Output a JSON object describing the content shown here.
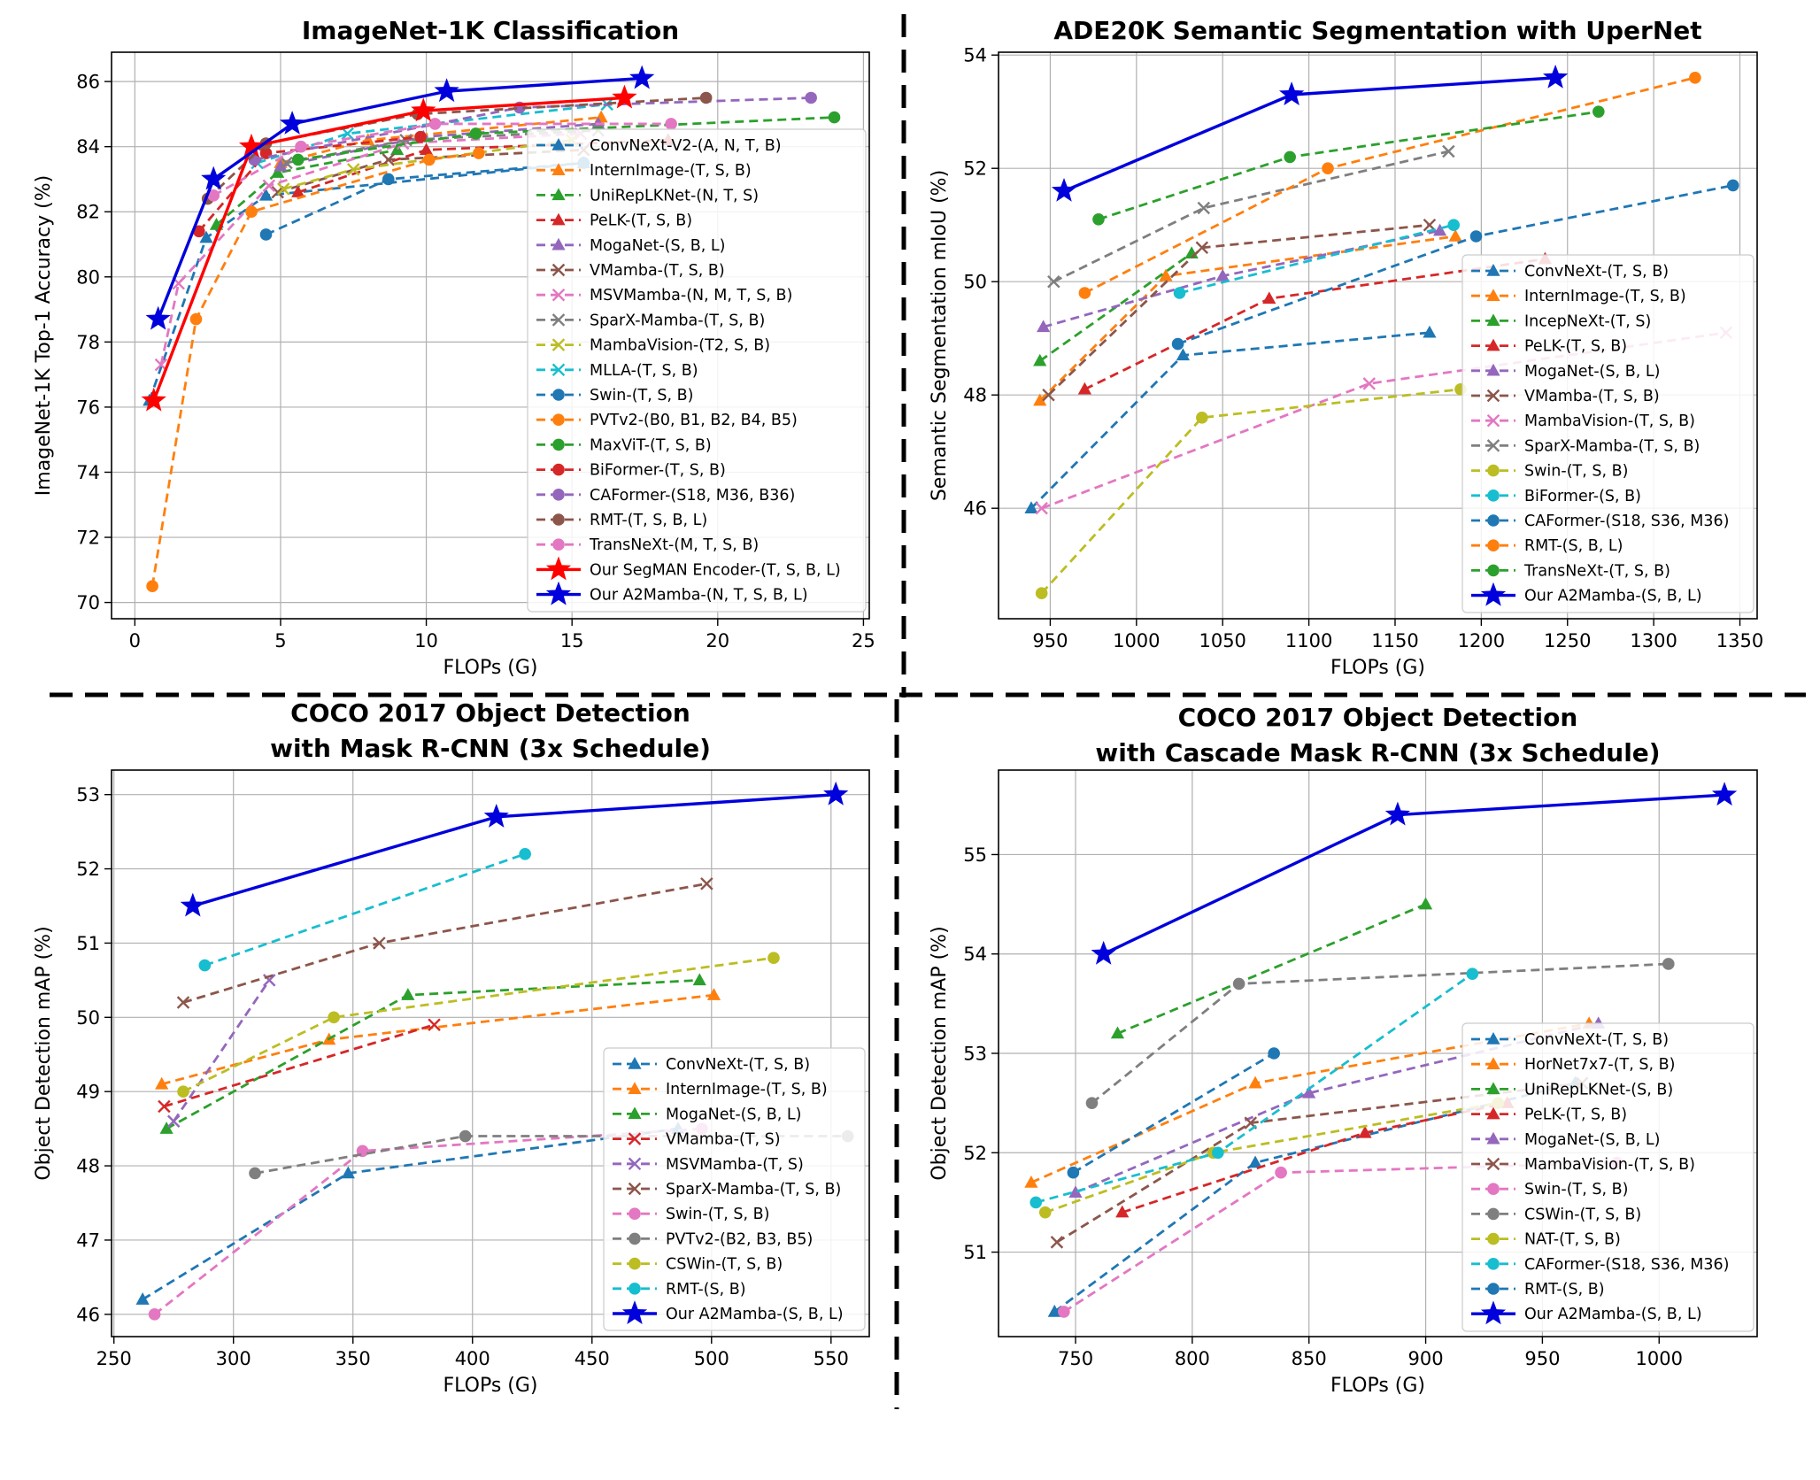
{
  "chart_data": [
    {
      "id": "imagenet",
      "type": "line",
      "title": [
        "ImageNet-1K Classification"
      ],
      "xlabel": "FLOPs (G)",
      "ylabel": "ImageNet-1K Top-1 Accuracy (%)",
      "xlim": [
        -0.8,
        25.2
      ],
      "ylim": [
        69.5,
        86.9
      ],
      "xticks": [
        0,
        5,
        10,
        15,
        20,
        25
      ],
      "yticks": [
        70,
        72,
        74,
        76,
        78,
        80,
        82,
        84,
        86
      ],
      "grid": true,
      "legend": "lower right",
      "series": [
        {
          "name": "ConvNeXt-V2-(A, N, T, B)",
          "color": "#1f77b4",
          "marker": "^",
          "dash": "dashed",
          "x": [
            0.5,
            2.45,
            4.5,
            15.4
          ],
          "y": [
            76.2,
            81.2,
            82.5,
            83.5
          ]
        },
        {
          "name": "InternImage-(T, S, B)",
          "color": "#ff7f0e",
          "marker": "^",
          "dash": "dashed",
          "x": [
            5,
            8,
            16
          ],
          "y": [
            83.5,
            84.2,
            84.9
          ]
        },
        {
          "name": "UniRepLKNet-(N, T, S)",
          "color": "#2ca02c",
          "marker": "^",
          "dash": "dashed",
          "x": [
            2.8,
            4.9,
            9
          ],
          "y": [
            81.6,
            83.2,
            83.9
          ]
        },
        {
          "name": "PeLK-(T, S, B)",
          "color": "#d62728",
          "marker": "^",
          "dash": "dashed",
          "x": [
            5.6,
            10,
            18.3
          ],
          "y": [
            82.6,
            83.9,
            84.2
          ]
        },
        {
          "name": "MogaNet-(S, B, L)",
          "color": "#9467bd",
          "marker": "^",
          "dash": "dashed",
          "x": [
            5,
            9.9,
            15.9
          ],
          "y": [
            83.4,
            84.3,
            84.7
          ]
        },
        {
          "name": "VMamba-(T, S, B)",
          "color": "#8c564b",
          "marker": "x",
          "dash": "dashed",
          "x": [
            4.9,
            8.7,
            15.4
          ],
          "y": [
            82.6,
            83.6,
            83.9
          ]
        },
        {
          "name": "MSVMamba-(N, M, T, S, B)",
          "color": "#e377c2",
          "marker": "x",
          "dash": "dashed",
          "x": [
            0.9,
            1.5,
            4.6,
            9.2,
            15.3
          ],
          "y": [
            77.3,
            79.8,
            82.8,
            84.1,
            84.4
          ]
        },
        {
          "name": "SparX-Mamba-(T, S, B)",
          "color": "#7f7f7f",
          "marker": "x",
          "dash": "dashed",
          "x": [
            5.2,
            9.3,
            15.9
          ],
          "y": [
            83.5,
            84.2,
            84.5
          ]
        },
        {
          "name": "MambaVision-(T2, S, B)",
          "color": "#bcbd22",
          "marker": "x",
          "dash": "dashed",
          "x": [
            5.1,
            7.5,
            15
          ],
          "y": [
            82.7,
            83.3,
            84.2
          ]
        },
        {
          "name": "MLLA-(T, S, B)",
          "color": "#17becf",
          "marker": "x",
          "dash": "dashed",
          "x": [
            4.2,
            7.3,
            16.2
          ],
          "y": [
            83.5,
            84.4,
            85.3
          ]
        },
        {
          "name": "Swin-(T, S, B)",
          "color": "#1f77b4",
          "marker": "o",
          "dash": "dashed",
          "x": [
            4.5,
            8.7,
            15.4
          ],
          "y": [
            81.3,
            83,
            83.5
          ]
        },
        {
          "name": "PVTv2-(B0, B1, B2, B4, B5)",
          "color": "#ff7f0e",
          "marker": "o",
          "dash": "dashed",
          "x": [
            0.6,
            2.1,
            4,
            10.1,
            11.8
          ],
          "y": [
            70.5,
            78.7,
            82,
            83.6,
            83.8
          ]
        },
        {
          "name": "MaxViT-(T, S, B)",
          "color": "#2ca02c",
          "marker": "o",
          "dash": "dashed",
          "x": [
            5.6,
            11.7,
            24
          ],
          "y": [
            83.6,
            84.4,
            84.9
          ]
        },
        {
          "name": "BiFormer-(T, S, B)",
          "color": "#d62728",
          "marker": "o",
          "dash": "dashed",
          "x": [
            2.2,
            4.5,
            9.8
          ],
          "y": [
            81.4,
            83.8,
            84.3
          ]
        },
        {
          "name": "CAFormer-(S18, M36, B36)",
          "color": "#9467bd",
          "marker": "o",
          "dash": "dashed",
          "x": [
            4.1,
            13.2,
            23.2
          ],
          "y": [
            83.6,
            85.2,
            85.5
          ]
        },
        {
          "name": "RMT-(T, S, B, L)",
          "color": "#8c564b",
          "marker": "o",
          "dash": "dashed",
          "x": [
            2.5,
            4.5,
            9.7,
            19.6
          ],
          "y": [
            82.4,
            84.1,
            85,
            85.5
          ]
        },
        {
          "name": "TransNeXt-(M, T, S, B)",
          "color": "#e377c2",
          "marker": "o",
          "dash": "dashed",
          "x": [
            2.7,
            5.7,
            10.3,
            18.4
          ],
          "y": [
            82.5,
            84,
            84.7,
            84.7
          ]
        },
        {
          "name": "Our SegMAN Encoder-(T, S, B, L)",
          "color": "#ff0000",
          "marker": "*",
          "dash": "solid",
          "x": [
            0.65,
            4,
            9.9,
            16.8
          ],
          "y": [
            76.2,
            84,
            85.1,
            85.5
          ]
        },
        {
          "name": "Our A2Mamba-(N, T, S, B, L)",
          "color": "#0000dd",
          "marker": "*",
          "dash": "solid",
          "x": [
            0.8,
            2.7,
            5.4,
            10.7,
            17.4
          ],
          "y": [
            78.7,
            83,
            84.7,
            85.7,
            86.1
          ]
        }
      ]
    },
    {
      "id": "ade20k",
      "type": "line",
      "title": [
        "ADE20K Semantic Segmentation with UperNet"
      ],
      "xlabel": "FLOPs (G)",
      "ylabel": "Semantic Segmentation mIoU (%)",
      "xlim": [
        920,
        1360
      ],
      "ylim": [
        44.05,
        54.05
      ],
      "xticks": [
        950,
        1000,
        1050,
        1100,
        1150,
        1200,
        1250,
        1300,
        1350
      ],
      "yticks": [
        46,
        48,
        50,
        52,
        54
      ],
      "grid": true,
      "legend": "lower right",
      "series": [
        {
          "name": "ConvNeXt-(T, S, B)",
          "color": "#1f77b4",
          "marker": "^",
          "dash": "dashed",
          "x": [
            939,
            1027,
            1170
          ],
          "y": [
            46,
            48.7,
            49.1
          ]
        },
        {
          "name": "InternImage-(T, S, B)",
          "color": "#ff7f0e",
          "marker": "^",
          "dash": "dashed",
          "x": [
            944,
            1017,
            1185
          ],
          "y": [
            47.9,
            50.1,
            50.8
          ]
        },
        {
          "name": "IncepNeXt-(T, S)",
          "color": "#2ca02c",
          "marker": "^",
          "dash": "dashed",
          "x": [
            944,
            1032
          ],
          "y": [
            48.6,
            50.5
          ]
        },
        {
          "name": "PeLK-(T, S, B)",
          "color": "#d62728",
          "marker": "^",
          "dash": "dashed",
          "x": [
            970,
            1077,
            1237
          ],
          "y": [
            48.1,
            49.7,
            50.4
          ]
        },
        {
          "name": "MogaNet-(S, B, L)",
          "color": "#9467bd",
          "marker": "^",
          "dash": "dashed",
          "x": [
            946,
            1050,
            1176
          ],
          "y": [
            49.2,
            50.1,
            50.9
          ]
        },
        {
          "name": "VMamba-(T, S, B)",
          "color": "#8c564b",
          "marker": "x",
          "dash": "dashed",
          "x": [
            949,
            1038,
            1170
          ],
          "y": [
            48,
            50.6,
            51
          ]
        },
        {
          "name": "MambaVision-(T, S, B)",
          "color": "#e377c2",
          "marker": "x",
          "dash": "dashed",
          "x": [
            945,
            1135,
            1342
          ],
          "y": [
            46,
            48.2,
            49.1
          ]
        },
        {
          "name": "SparX-Mamba-(T, S, B)",
          "color": "#7f7f7f",
          "marker": "x",
          "dash": "dashed",
          "x": [
            952,
            1039,
            1181
          ],
          "y": [
            50,
            51.3,
            52.3
          ]
        },
        {
          "name": "Swin-(T, S, B)",
          "color": "#bcbd22",
          "marker": "o",
          "dash": "dashed",
          "x": [
            945,
            1038,
            1188
          ],
          "y": [
            44.5,
            47.6,
            48.1
          ]
        },
        {
          "name": "BiFormer-(S, B)",
          "color": "#17becf",
          "marker": "o",
          "dash": "dashed",
          "x": [
            1025,
            1184
          ],
          "y": [
            49.8,
            51
          ]
        },
        {
          "name": "CAFormer-(S18, S36, M36)",
          "color": "#1f77b4",
          "marker": "o",
          "dash": "dashed",
          "x": [
            1024,
            1197,
            1346
          ],
          "y": [
            48.9,
            50.8,
            51.7
          ]
        },
        {
          "name": "RMT-(S, B, L)",
          "color": "#ff7f0e",
          "marker": "o",
          "dash": "dashed",
          "x": [
            970,
            1111,
            1324
          ],
          "y": [
            49.8,
            52,
            53.6
          ]
        },
        {
          "name": "TransNeXt-(T, S, B)",
          "color": "#2ca02c",
          "marker": "o",
          "dash": "dashed",
          "x": [
            978,
            1089,
            1268
          ],
          "y": [
            51.1,
            52.2,
            53
          ]
        },
        {
          "name": "Our A2Mamba-(S, B, L)",
          "color": "#0000dd",
          "marker": "*",
          "dash": "solid",
          "x": [
            958,
            1090,
            1243
          ],
          "y": [
            51.6,
            53.3,
            53.6
          ]
        }
      ]
    },
    {
      "id": "coco_mask",
      "type": "line",
      "title": [
        "COCO 2017 Object Detection",
        "with Mask R-CNN  (3x Schedule)"
      ],
      "xlabel": "FLOPs (G)",
      "ylabel": "Object Detection mAP (%)",
      "xlim": [
        249,
        566
      ],
      "ylim": [
        45.7,
        53.33
      ],
      "xticks": [
        250,
        300,
        350,
        400,
        450,
        500,
        550
      ],
      "yticks": [
        46,
        47,
        48,
        49,
        50,
        51,
        52,
        53
      ],
      "grid": true,
      "legend": "lower right",
      "series": [
        {
          "name": "ConvNeXt-(T, S, B)",
          "color": "#1f77b4",
          "marker": "^",
          "dash": "dashed",
          "x": [
            262,
            348,
            486
          ],
          "y": [
            46.2,
            47.9,
            48.5
          ]
        },
        {
          "name": "InternImage-(T, S, B)",
          "color": "#ff7f0e",
          "marker": "^",
          "dash": "dashed",
          "x": [
            270,
            340,
            501
          ],
          "y": [
            49.1,
            49.7,
            50.3
          ]
        },
        {
          "name": "MogaNet-(S, B, L)",
          "color": "#2ca02c",
          "marker": "^",
          "dash": "dashed",
          "x": [
            272,
            373,
            495
          ],
          "y": [
            48.5,
            50.3,
            50.5
          ]
        },
        {
          "name": "VMamba-(T, S)",
          "color": "#d62728",
          "marker": "x",
          "dash": "dashed",
          "x": [
            271,
            384
          ],
          "y": [
            48.8,
            49.9
          ]
        },
        {
          "name": "MSVMamba-(T, S)",
          "color": "#9467bd",
          "marker": "x",
          "dash": "dashed",
          "x": [
            275,
            315
          ],
          "y": [
            48.6,
            50.5
          ]
        },
        {
          "name": "SparX-Mamba-(T, S, B)",
          "color": "#8c564b",
          "marker": "x",
          "dash": "dashed",
          "x": [
            279,
            361,
            498
          ],
          "y": [
            50.2,
            51,
            51.8
          ]
        },
        {
          "name": "Swin-(T, S, B)",
          "color": "#e377c2",
          "marker": "o",
          "dash": "dashed",
          "x": [
            267,
            354,
            496
          ],
          "y": [
            46,
            48.2,
            48.5
          ]
        },
        {
          "name": "PVTv2-(B2, B3, B5)",
          "color": "#7f7f7f",
          "marker": "o",
          "dash": "dashed",
          "x": [
            309,
            397,
            557
          ],
          "y": [
            47.9,
            48.4,
            48.4
          ]
        },
        {
          "name": "CSWin-(T, S, B)",
          "color": "#bcbd22",
          "marker": "o",
          "dash": "dashed",
          "x": [
            279,
            342,
            526
          ],
          "y": [
            49,
            50,
            50.8
          ]
        },
        {
          "name": "RMT-(S, B)",
          "color": "#17becf",
          "marker": "o",
          "dash": "dashed",
          "x": [
            288,
            422
          ],
          "y": [
            50.7,
            52.2
          ]
        },
        {
          "name": "Our A2Mamba-(S, B, L)",
          "color": "#0000dd",
          "marker": "*",
          "dash": "solid",
          "x": [
            283,
            410,
            552
          ],
          "y": [
            51.5,
            52.7,
            53
          ]
        }
      ]
    },
    {
      "id": "coco_cascade",
      "type": "line",
      "title": [
        "COCO 2017 Object Detection",
        "with Cascade Mask R-CNN (3x Schedule)"
      ],
      "xlabel": "FLOPs (G)",
      "ylabel": "Object Detection mAP (%)",
      "xlim": [
        717,
        1042
      ],
      "ylim": [
        50.15,
        55.85
      ],
      "xticks": [
        750,
        800,
        850,
        900,
        950,
        1000
      ],
      "yticks": [
        51,
        52,
        53,
        54,
        55
      ],
      "grid": true,
      "legend": "lower right",
      "series": [
        {
          "name": "ConvNeXt-(T, S, B)",
          "color": "#1f77b4",
          "marker": "^",
          "dash": "dashed",
          "x": [
            741,
            827,
            964
          ],
          "y": [
            50.4,
            51.9,
            52.7
          ]
        },
        {
          "name": "HorNet7x7-(T, S, B)",
          "color": "#ff7f0e",
          "marker": "^",
          "dash": "dashed",
          "x": [
            731,
            827,
            970
          ],
          "y": [
            51.7,
            52.7,
            53.3
          ]
        },
        {
          "name": "UniRepLKNet-(S, B)",
          "color": "#2ca02c",
          "marker": "^",
          "dash": "dashed",
          "x": [
            768,
            900
          ],
          "y": [
            53.2,
            54.5
          ]
        },
        {
          "name": "PeLK-(T, S, B)",
          "color": "#d62728",
          "marker": "^",
          "dash": "dashed",
          "x": [
            770,
            874,
            935
          ],
          "y": [
            51.4,
            52.2,
            52.5
          ]
        },
        {
          "name": "MogaNet-(S, B, L)",
          "color": "#9467bd",
          "marker": "^",
          "dash": "dashed",
          "x": [
            750,
            850,
            974
          ],
          "y": [
            51.6,
            52.6,
            53.3
          ]
        },
        {
          "name": "MambaVision-(T, S, B)",
          "color": "#8c564b",
          "marker": "x",
          "dash": "dashed",
          "x": [
            742,
            825,
            967
          ],
          "y": [
            51.1,
            52.3,
            52.7
          ]
        },
        {
          "name": "Swin-(T, S, B)",
          "color": "#e377c2",
          "marker": "o",
          "dash": "dashed",
          "x": [
            745,
            838,
            982
          ],
          "y": [
            50.4,
            51.8,
            51.9
          ]
        },
        {
          "name": "CSWin-(T, S, B)",
          "color": "#7f7f7f",
          "marker": "o",
          "dash": "dashed",
          "x": [
            757,
            820,
            1004
          ],
          "y": [
            52.5,
            53.7,
            53.9
          ]
        },
        {
          "name": "NAT-(T, S, B)",
          "color": "#bcbd22",
          "marker": "o",
          "dash": "dashed",
          "x": [
            737,
            809,
            931
          ],
          "y": [
            51.4,
            52,
            52.5
          ]
        },
        {
          "name": "CAFormer-(S18, S36, M36)",
          "color": "#17becf",
          "marker": "o",
          "dash": "dashed",
          "x": [
            733,
            811,
            920
          ],
          "y": [
            51.5,
            52,
            53.8
          ]
        },
        {
          "name": "RMT-(S, B)",
          "color": "#1f77b4",
          "marker": "o",
          "dash": "dashed",
          "x": [
            749,
            835
          ],
          "y": [
            51.8,
            53
          ]
        },
        {
          "name": "Our A2Mamba-(S, B, L)",
          "color": "#0000dd",
          "marker": "*",
          "dash": "solid",
          "x": [
            762,
            888,
            1028
          ],
          "y": [
            54,
            55.4,
            55.6
          ]
        }
      ]
    }
  ]
}
